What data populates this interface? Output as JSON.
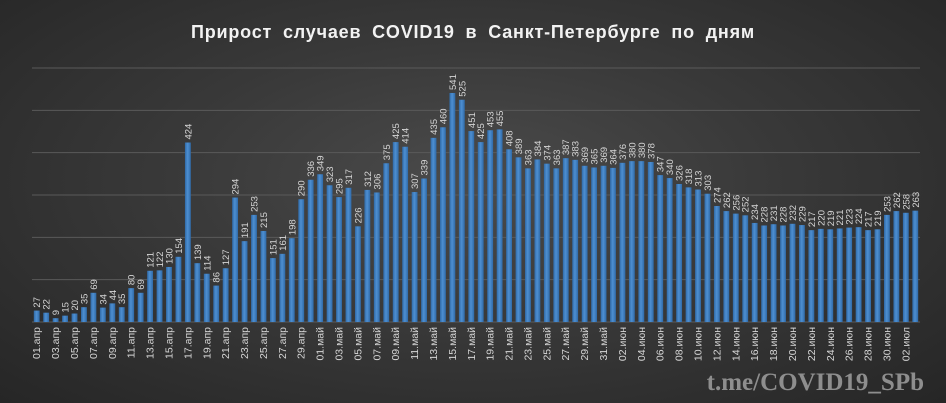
{
  "title": "Прирост  случаев  COVID19  в  Санкт-Петербурге  по  дням",
  "watermark": "t.me/COVID19_SPb",
  "colors": {
    "bar": "#4e8fd1",
    "bar_dark": "#2f6aa8",
    "grid": "#5a5a5a",
    "label": "#d6d6d6",
    "tick": "#d6d6d6"
  },
  "chart_data": {
    "type": "bar",
    "title": "Прирост  случаев  COVID19  в  Санкт-Петербурге  по  дням",
    "ylim": [
      0,
      600
    ],
    "grid": true,
    "categories": [
      "01.апр",
      "02.апр",
      "03.апр",
      "04.апр",
      "05.апр",
      "06.апр",
      "07.апр",
      "08.апр",
      "09.апр",
      "10.апр",
      "11.апр",
      "12.апр",
      "13.апр",
      "14.апр",
      "15.апр",
      "16.апр",
      "17.апр",
      "18.апр",
      "19.апр",
      "20.апр",
      "21.апр",
      "22.апр",
      "23.апр",
      "24.апр",
      "25.апр",
      "26.апр",
      "27.апр",
      "28.апр",
      "29.апр",
      "30.апр",
      "01.май",
      "02.май",
      "03.май",
      "04.май",
      "05.май",
      "06.май",
      "07.май",
      "08.май",
      "09.май",
      "10.май",
      "11.май",
      "12.май",
      "13.май",
      "14.май",
      "15.май",
      "16.май",
      "17.май",
      "18.май",
      "19.май",
      "20.май",
      "21.май",
      "22.май",
      "23.май",
      "24.май",
      "25.май",
      "26.май",
      "27.май",
      "28.май",
      "29.май",
      "30.май",
      "31.май",
      "01.июн",
      "02.июн",
      "03.июн",
      "04.июн",
      "05.июн",
      "06.июн",
      "07.июн",
      "08.июн",
      "09.июн",
      "10.июн",
      "11.июн",
      "12.июн",
      "13.июн",
      "14.июн",
      "15.июн",
      "16.июн",
      "17.июн",
      "18.июн",
      "19.июн",
      "20.июн",
      "21.июн",
      "22.июн",
      "23.июн",
      "24.июн",
      "25.июн",
      "26.июн",
      "27.июн",
      "28.июн",
      "29.июн",
      "30.июн",
      "01.июл",
      "02.июл",
      "03.июл"
    ],
    "tick_labels": [
      "01.апр",
      "03.апр",
      "05.апр",
      "07.апр",
      "09.апр",
      "11.апр",
      "13.апр",
      "15.апр",
      "17.апр",
      "19.апр",
      "21.апр",
      "23.апр",
      "25.апр",
      "27.апр",
      "29.апр",
      "01.май",
      "03.май",
      "05.май",
      "07.май",
      "09.май",
      "11.май",
      "13.май",
      "15.май",
      "17.май",
      "19.май",
      "21.май",
      "23.май",
      "25.май",
      "27.май",
      "29.май",
      "31.май",
      "02.июн",
      "04.июн",
      "06.июн",
      "08.июн",
      "10.июн",
      "12.июн",
      "14.июн",
      "16.июн",
      "18.июн",
      "20.июн",
      "22.июн",
      "24.июн",
      "26.июн",
      "28.июн",
      "30.июн",
      "02.июл"
    ],
    "values": [
      27,
      22,
      9,
      15,
      20,
      35,
      69,
      34,
      44,
      35,
      80,
      69,
      121,
      122,
      130,
      154,
      424,
      139,
      114,
      86,
      127,
      294,
      191,
      253,
      215,
      151,
      161,
      198,
      290,
      336,
      349,
      323,
      295,
      317,
      226,
      312,
      306,
      375,
      425,
      414,
      307,
      339,
      435,
      460,
      541,
      525,
      451,
      425,
      453,
      455,
      408,
      389,
      363,
      384,
      374,
      363,
      387,
      383,
      369,
      365,
      369,
      364,
      376,
      380,
      380,
      378,
      347,
      340,
      326,
      318,
      313,
      303,
      274,
      262,
      256,
      252,
      234,
      228,
      231,
      228,
      232,
      229,
      217,
      220,
      219,
      221,
      223,
      224,
      217,
      219,
      253,
      262,
      258,
      263
    ]
  }
}
